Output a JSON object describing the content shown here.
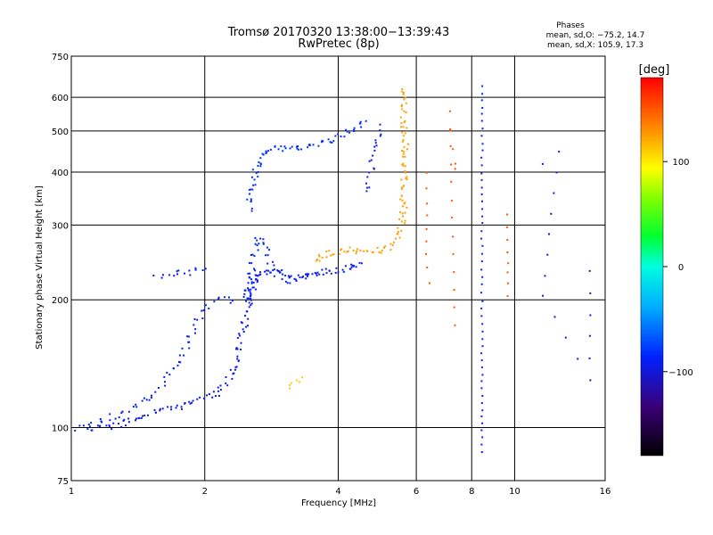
{
  "chart_data": {
    "type": "scatter",
    "title": "Tromsø 20170320 13:38:00−13:39:43",
    "subtitle": "RwPretec (8p)",
    "phases": {
      "label": "Phases",
      "line_o": "mean, sd,O: −75.2, 14.7",
      "line_x": "mean, sd,X: 105.9, 17.3"
    },
    "xlabel": "Frequency [MHz]",
    "ylabel": "Stationary phase Virtual Height [km]",
    "x_scale": "log",
    "y_scale": "log",
    "xlim": [
      1,
      16
    ],
    "ylim": [
      75,
      750
    ],
    "x_ticks": [
      1,
      2,
      4,
      6,
      8,
      10,
      16
    ],
    "x_tick_labels": [
      "1",
      "2",
      "4",
      "6",
      "8",
      "10",
      "16"
    ],
    "y_ticks": [
      75,
      100,
      200,
      300,
      400,
      500,
      600,
      750
    ],
    "y_tick_labels": [
      "75",
      "100",
      "200",
      "300",
      "400",
      "500",
      "600",
      "750"
    ],
    "grid": true,
    "colorbar": {
      "label": "[deg]",
      "range": [
        -180,
        180
      ],
      "ticks": [
        -100,
        0,
        100
      ],
      "tick_labels": [
        "−100",
        "0",
        "100"
      ],
      "colormap": "rainbow"
    },
    "traces": [
      {
        "name": "",
        "phase": -95,
        "density": 3.5,
        "points": [
          [
            1.03,
            100
          ],
          [
            1.15,
            100
          ],
          [
            1.3,
            103
          ],
          [
            1.5,
            108
          ],
          [
            1.7,
            112
          ],
          [
            1.85,
            115
          ],
          [
            2.0,
            118
          ],
          [
            2.15,
            122
          ],
          [
            2.25,
            130
          ],
          [
            2.35,
            145
          ],
          [
            2.42,
            168
          ],
          [
            2.5,
            200
          ],
          [
            2.6,
            225
          ]
        ]
      },
      {
        "name": "",
        "phase": -88,
        "density": 2.5,
        "points": [
          [
            1.1,
            103
          ],
          [
            1.3,
            108
          ],
          [
            1.5,
            118
          ],
          [
            1.65,
            132
          ],
          [
            1.8,
            152
          ],
          [
            1.9,
            175
          ],
          [
            2.0,
            195
          ],
          [
            2.15,
            202
          ],
          [
            2.3,
            200
          ]
        ]
      },
      {
        "name": "",
        "phase": -92,
        "density": 2.5,
        "points": [
          [
            1.55,
            228
          ],
          [
            1.7,
            232
          ],
          [
            1.85,
            234
          ],
          [
            2.0,
            238
          ]
        ]
      },
      {
        "name": "",
        "phase": -90,
        "density": 5,
        "points": [
          [
            2.45,
            205
          ],
          [
            2.55,
            225
          ],
          [
            2.75,
            235
          ],
          [
            2.95,
            232
          ],
          [
            3.15,
            225
          ],
          [
            3.35,
            228
          ],
          [
            3.6,
            232
          ],
          [
            3.9,
            235
          ],
          [
            4.2,
            240
          ],
          [
            4.5,
            245
          ]
        ]
      },
      {
        "name": "",
        "phase": -85,
        "density": 3,
        "points": [
          [
            2.5,
            195
          ],
          [
            2.55,
            245
          ],
          [
            2.62,
            285
          ],
          [
            2.72,
            265
          ],
          [
            2.9,
            230
          ],
          [
            3.1,
            220
          ]
        ]
      },
      {
        "name": "",
        "phase": -80,
        "density": 4,
        "points": [
          [
            2.5,
            330
          ],
          [
            2.55,
            380
          ],
          [
            2.65,
            430
          ],
          [
            2.8,
            455
          ],
          [
            3.1,
            455
          ],
          [
            3.4,
            462
          ],
          [
            3.7,
            470
          ],
          [
            4.0,
            485
          ],
          [
            4.3,
            505
          ],
          [
            4.6,
            530
          ]
        ]
      },
      {
        "name": "",
        "phase": 125,
        "density": 4,
        "points": [
          [
            3.5,
            250
          ],
          [
            3.8,
            258
          ],
          [
            4.1,
            263
          ],
          [
            4.5,
            262
          ],
          [
            4.9,
            262
          ],
          [
            5.2,
            268
          ],
          [
            5.4,
            280
          ],
          [
            5.55,
            300
          ],
          [
            5.6,
            350
          ],
          [
            5.62,
            420
          ],
          [
            5.62,
            500
          ],
          [
            5.6,
            580
          ],
          [
            5.55,
            630
          ]
        ]
      },
      {
        "name": "",
        "phase": 110,
        "density": 2.5,
        "points": [
          [
            3.05,
            123
          ],
          [
            3.15,
            126
          ],
          [
            3.3,
            132
          ]
        ]
      },
      {
        "name": "",
        "phase": -95,
        "density": 2.5,
        "points": [
          [
            4.6,
            360
          ],
          [
            4.75,
            420
          ],
          [
            4.85,
            480
          ],
          [
            4.95,
            520
          ]
        ]
      },
      {
        "name": "",
        "phase": -85,
        "density": 1.2,
        "points": [
          [
            8.4,
            640
          ],
          [
            8.4,
            550
          ],
          [
            8.4,
            470
          ],
          [
            8.4,
            400
          ],
          [
            8.4,
            330
          ],
          [
            8.4,
            270
          ],
          [
            8.4,
            200
          ],
          [
            8.4,
            150
          ],
          [
            8.4,
            115
          ],
          [
            8.4,
            88
          ]
        ]
      },
      {
        "name": "",
        "phase": 150,
        "density": 0.7,
        "points": [
          [
            6.3,
            400
          ],
          [
            6.3,
            340
          ],
          [
            6.3,
            240
          ],
          [
            6.4,
            220
          ]
        ]
      },
      {
        "name": "",
        "phase": 150,
        "density": 0.8,
        "points": [
          [
            9.6,
            320
          ],
          [
            9.6,
            260
          ],
          [
            9.6,
            220
          ],
          [
            9.6,
            205
          ]
        ]
      },
      {
        "name": "",
        "phase": 150,
        "density": 0.5,
        "points": [
          [
            7.3,
            420
          ],
          [
            7.3,
            410
          ],
          [
            7.1,
            560
          ],
          [
            7.3,
            175
          ]
        ]
      },
      {
        "name": "",
        "phase": -100,
        "density": 0.4,
        "points": [
          [
            11.5,
            420
          ],
          [
            12.5,
            450
          ],
          [
            11.5,
            205
          ],
          [
            14.7,
            130
          ],
          [
            14.7,
            235
          ]
        ]
      }
    ]
  }
}
